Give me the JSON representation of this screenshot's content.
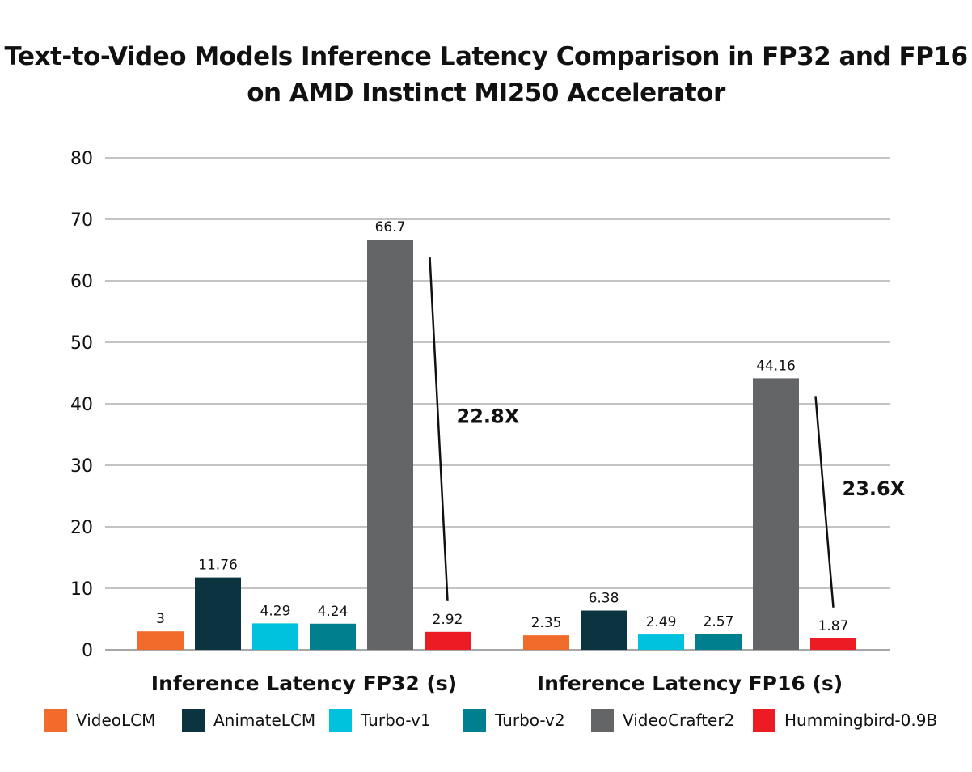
{
  "chart_data": {
    "type": "bar",
    "title_lines": [
      "Text-to-Video Models Inference Latency Comparison in FP32 and FP16",
      "on AMD Instinct MI250 Accelerator"
    ],
    "categories": [
      "Inference Latency FP32 (s)",
      "Inference Latency FP16 (s)"
    ],
    "series": [
      {
        "name": "VideoLCM",
        "color": "#F26B2A",
        "values": [
          3,
          2.35
        ],
        "labels": [
          "3",
          "2.35"
        ]
      },
      {
        "name": "AnimateLCM",
        "color": "#0B3440",
        "values": [
          11.76,
          6.38
        ],
        "labels": [
          "11.76",
          "6.38"
        ]
      },
      {
        "name": "Turbo-v1",
        "color": "#00C2DE",
        "values": [
          4.29,
          2.49
        ],
        "labels": [
          "4.29",
          "2.49"
        ]
      },
      {
        "name": "Turbo-v2",
        "color": "#00808F",
        "values": [
          4.24,
          2.57
        ],
        "labels": [
          "4.24",
          "2.57"
        ]
      },
      {
        "name": "VideoCrafter2",
        "color": "#646567",
        "values": [
          66.7,
          44.16
        ],
        "labels": [
          "66.7",
          "44.16"
        ]
      },
      {
        "name": "Hummingbird-0.9B",
        "color": "#ED1C24",
        "values": [
          2.92,
          1.87
        ],
        "labels": [
          "2.92",
          "1.87"
        ]
      }
    ],
    "ylim": [
      0,
      80
    ],
    "yticks": [
      0,
      10,
      20,
      30,
      40,
      50,
      60,
      70,
      80
    ],
    "grid": true,
    "legend_position": "bottom",
    "annotations": [
      {
        "text": "22.8X",
        "group": 0,
        "from_series": "VideoCrafter2",
        "to_series": "Hummingbird-0.9B"
      },
      {
        "text": "23.6X",
        "group": 1,
        "from_series": "VideoCrafter2",
        "to_series": "Hummingbird-0.9B"
      }
    ]
  }
}
